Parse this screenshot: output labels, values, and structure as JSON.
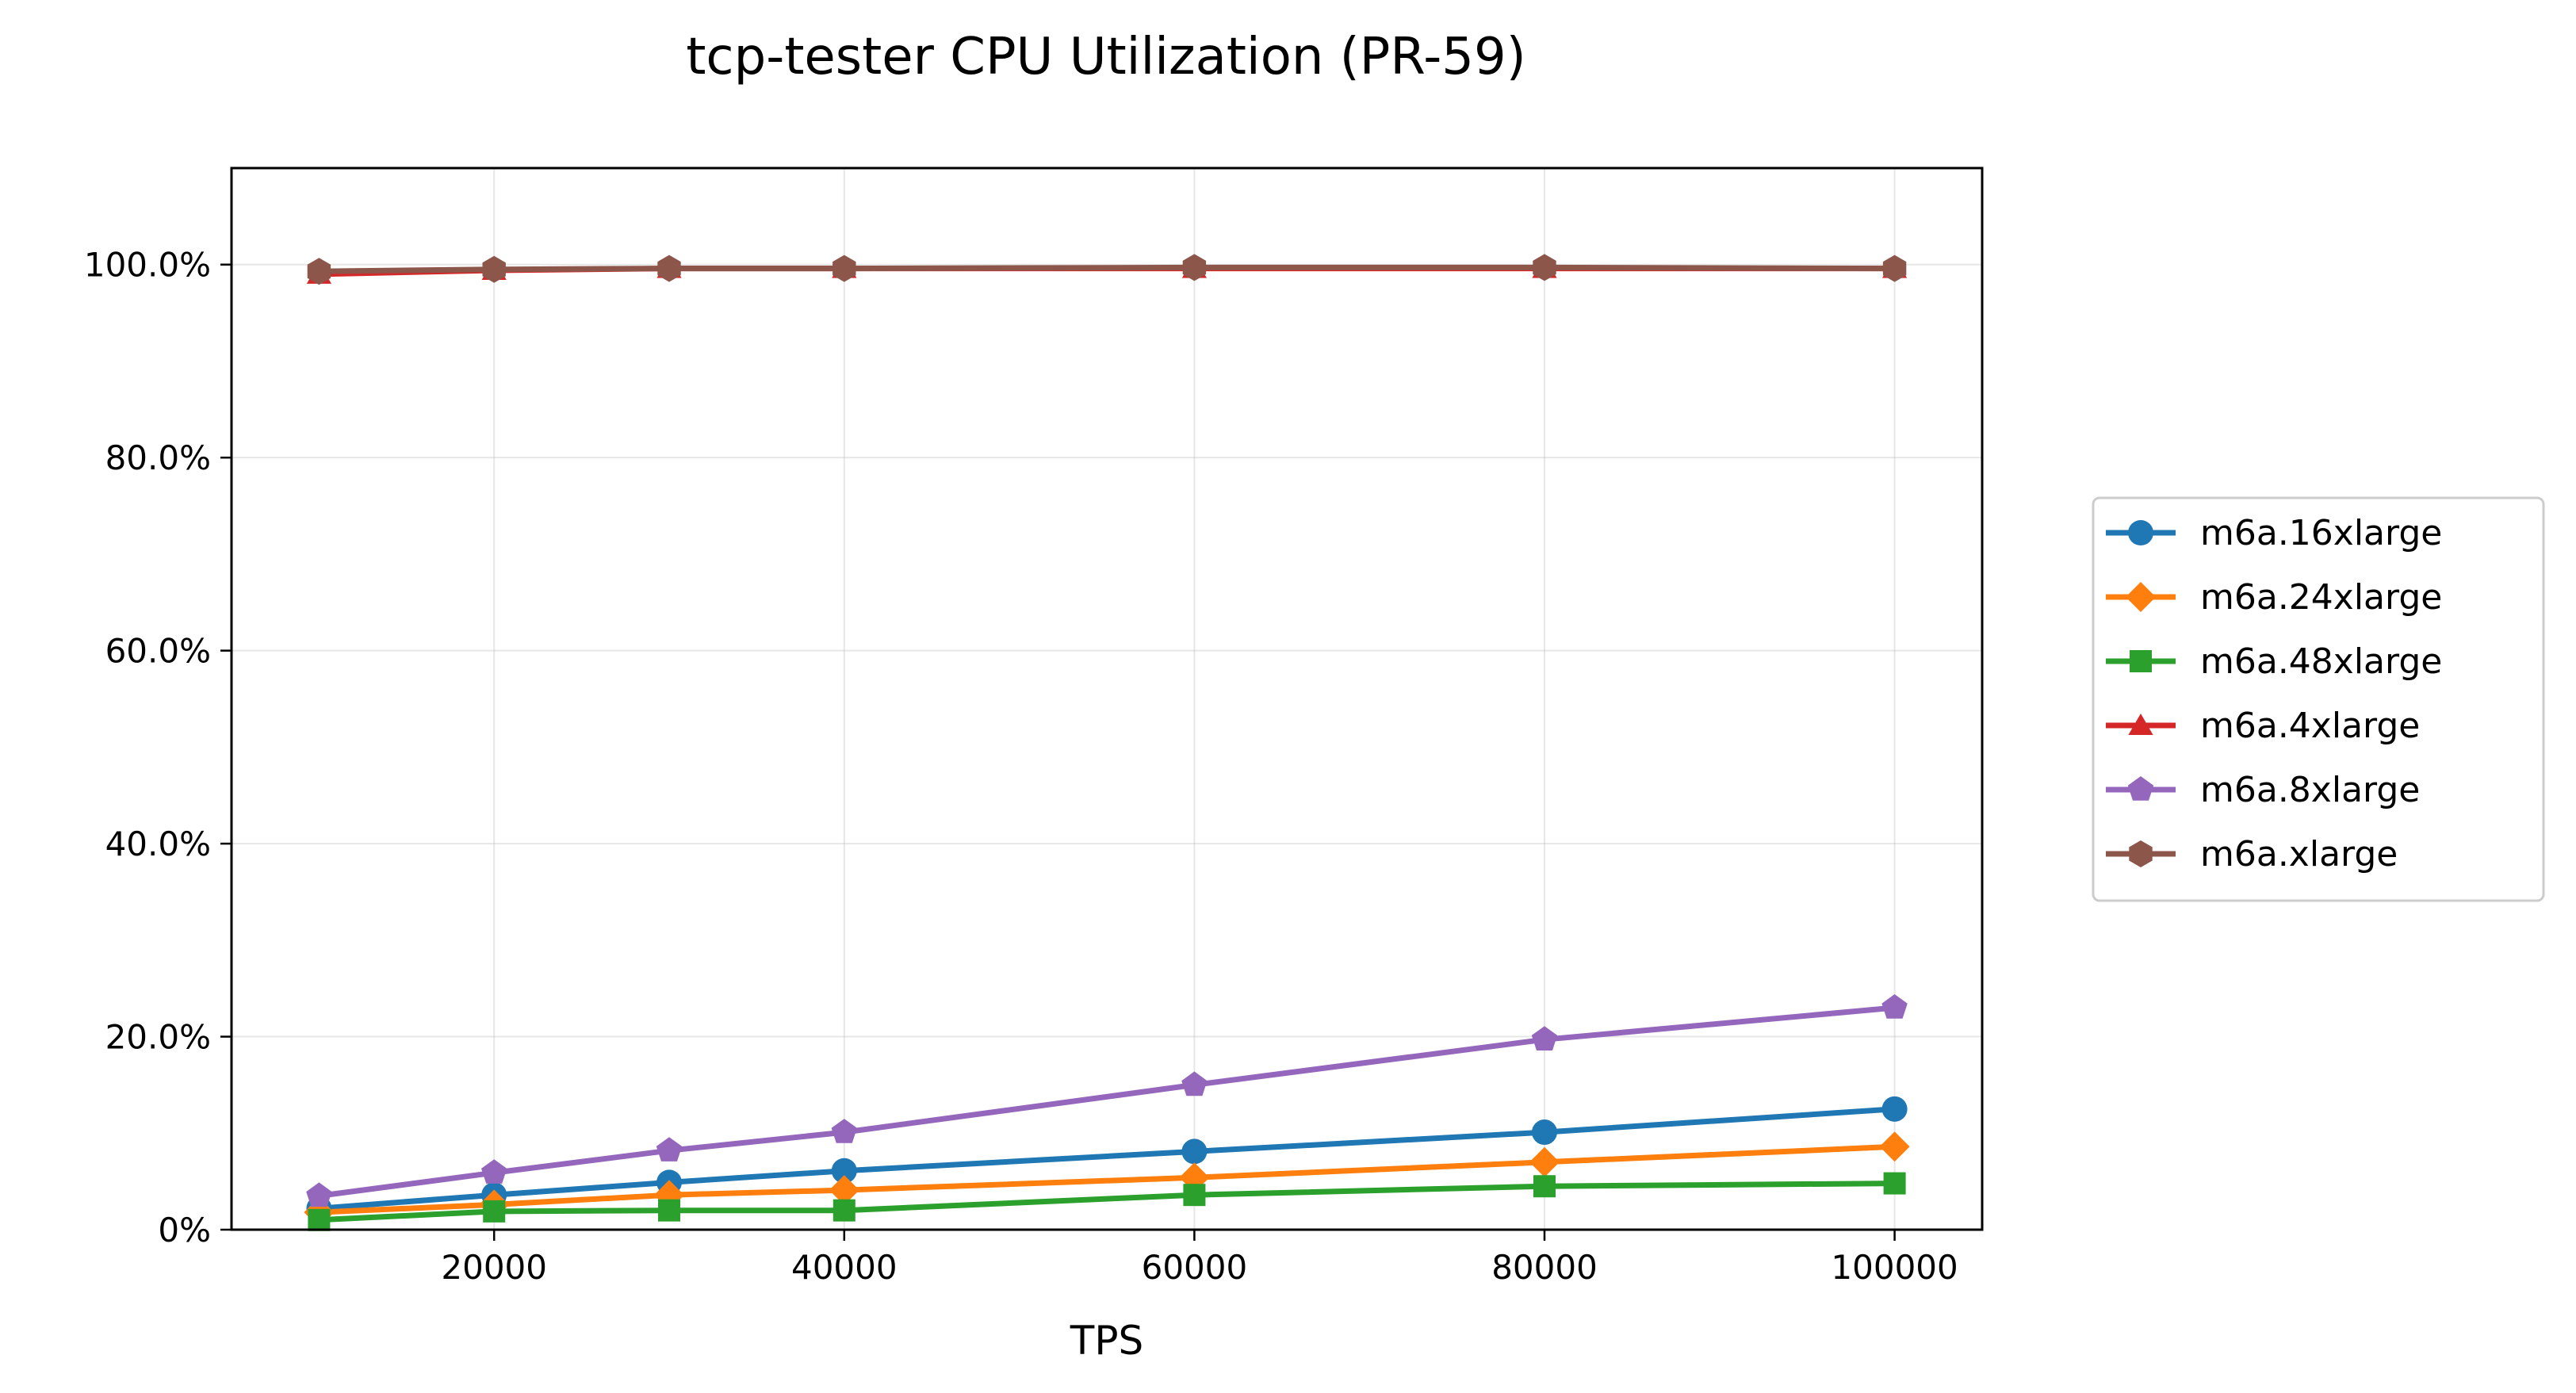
{
  "chart_data": {
    "type": "line",
    "title": "tcp-tester CPU Utilization (PR-59)",
    "xlabel": "TPS",
    "ylabel": "",
    "x": [
      10000,
      20000,
      30000,
      40000,
      60000,
      80000,
      100000
    ],
    "xlim": [
      5000,
      105000
    ],
    "ylim": [
      0,
      110
    ],
    "xticks": [
      20000,
      40000,
      60000,
      80000,
      100000
    ],
    "xtick_labels": [
      "20000",
      "40000",
      "60000",
      "80000",
      "100000"
    ],
    "yticks": [
      0,
      20,
      40,
      60,
      80,
      100
    ],
    "ytick_labels": [
      "0%",
      "20.0%",
      "40.0%",
      "60.0%",
      "80.0%",
      "100.0%"
    ],
    "grid": true,
    "legend_position": "outside-right",
    "series": [
      {
        "name": "m6a.16xlarge",
        "color": "#1f77b4",
        "marker": "circle",
        "values": [
          2.2,
          3.6,
          4.9,
          6.1,
          8.1,
          10.1,
          12.5
        ]
      },
      {
        "name": "m6a.24xlarge",
        "color": "#ff7f0e",
        "marker": "diamond",
        "values": [
          1.8,
          2.6,
          3.6,
          4.1,
          5.4,
          7.0,
          8.6
        ]
      },
      {
        "name": "m6a.48xlarge",
        "color": "#2ca02c",
        "marker": "square",
        "values": [
          1.0,
          1.9,
          2.0,
          2.0,
          3.6,
          4.5,
          4.8
        ]
      },
      {
        "name": "m6a.4xlarge",
        "color": "#d62728",
        "marker": "triangle",
        "values": [
          99.0,
          99.4,
          99.6,
          99.6,
          99.6,
          99.6,
          99.6
        ]
      },
      {
        "name": "m6a.8xlarge",
        "color": "#9467bd",
        "marker": "pentagon",
        "values": [
          3.5,
          5.9,
          8.2,
          10.1,
          15.0,
          19.7,
          23.0
        ]
      },
      {
        "name": "m6a.xlarge",
        "color": "#8c564b",
        "marker": "hexagon",
        "values": [
          99.3,
          99.5,
          99.6,
          99.6,
          99.7,
          99.7,
          99.6
        ]
      }
    ]
  }
}
